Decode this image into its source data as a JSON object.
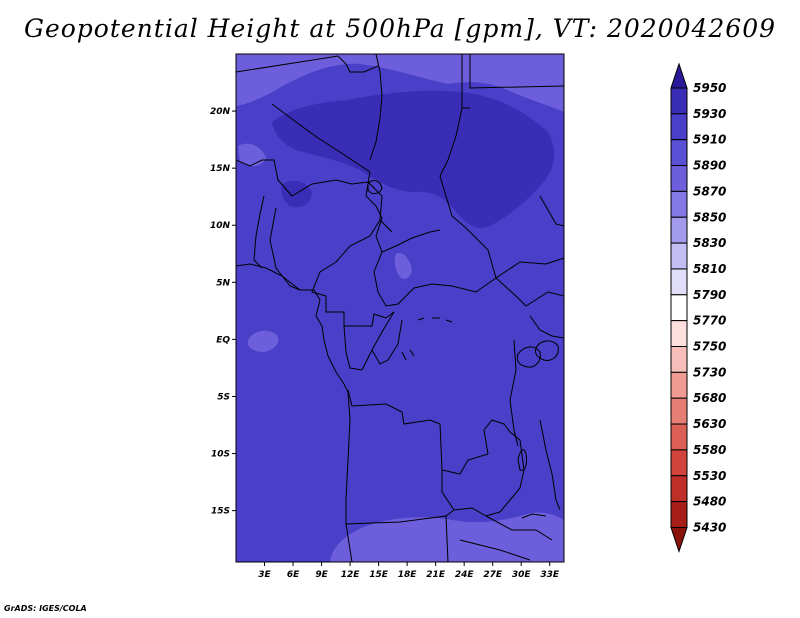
{
  "title": "Geopotential Height at 500hPa [gpm], VT: 2020042609",
  "credit": "GrADS: IGES/COLA",
  "map": {
    "lon_range": [
      0,
      34.5
    ],
    "lat_range": [
      -19.5,
      25
    ],
    "lon_ticks": [
      "3E",
      "6E",
      "9E",
      "12E",
      "15E",
      "18E",
      "21E",
      "24E",
      "27E",
      "30E",
      "33E"
    ],
    "lat_ticks": [
      "20N",
      "15N",
      "10N",
      "5N",
      "EQ",
      "5S",
      "10S",
      "15S"
    ],
    "fill_colors": {
      "c5850_5870": "#6d5fdc",
      "c5870_5890": "#4a3fc8",
      "c5890_5910": "#3a2db5"
    }
  },
  "colorbar": {
    "levels": [
      "5950",
      "5930",
      "5910",
      "5890",
      "5870",
      "5850",
      "5830",
      "5810",
      "5790",
      "5770",
      "5750",
      "5730",
      "5680",
      "5630",
      "5580",
      "5530",
      "5480",
      "5430"
    ],
    "colors": [
      "#2a1a99",
      "#3a2db5",
      "#4a3fc8",
      "#5a50d6",
      "#6d5fdc",
      "#8478e4",
      "#a29bed",
      "#c3bff4",
      "#e1defa",
      "#ffffff",
      "#fde0de",
      "#f7bdb8",
      "#ef9b94",
      "#e67e76",
      "#dc5f56",
      "#d2443b",
      "#c02f27",
      "#a81d17",
      "#8c120d"
    ]
  }
}
